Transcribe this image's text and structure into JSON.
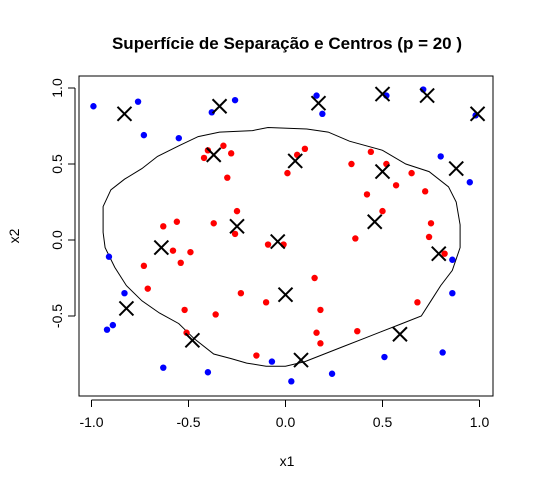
{
  "chart_data": {
    "type": "scatter",
    "title": "Superfície de Separação e Centros (p = 20 )",
    "xlabel": "x1",
    "ylabel": "x2",
    "xlim": [
      -1.0,
      1.0
    ],
    "ylim": [
      -0.95,
      1.0
    ],
    "x_ticks": [
      -1.0,
      -0.5,
      0.0,
      0.5,
      1.0
    ],
    "x_tick_labels": [
      "-1.0",
      "-0.5",
      "0.0",
      "0.5",
      "1.0"
    ],
    "y_ticks": [
      -0.5,
      0.0,
      0.5,
      1.0
    ],
    "y_tick_labels": [
      "-0.5",
      "0.0",
      "0.5",
      "1.0"
    ],
    "grid": false,
    "legend": "none",
    "colors": {
      "class_red": "#ff0000",
      "class_blue": "#0000ff",
      "centers": "#000000",
      "boundary": "#000000"
    },
    "series": [
      {
        "marker": "filled-circle",
        "color": "#ff0000",
        "points": [
          [
            -0.42,
            0.54
          ],
          [
            -0.32,
            0.62
          ],
          [
            -0.28,
            0.57
          ],
          [
            -0.3,
            0.41
          ],
          [
            -0.4,
            0.59
          ],
          [
            -0.37,
            0.11
          ],
          [
            -0.25,
            0.19
          ],
          [
            -0.26,
            0.04
          ],
          [
            -0.56,
            0.12
          ],
          [
            -0.63,
            0.09
          ],
          [
            -0.58,
            -0.07
          ],
          [
            -0.54,
            -0.15
          ],
          [
            -0.49,
            -0.08
          ],
          [
            -0.73,
            -0.17
          ],
          [
            -0.71,
            -0.32
          ],
          [
            -0.52,
            -0.46
          ],
          [
            -0.51,
            -0.61
          ],
          [
            -0.36,
            -0.49
          ],
          [
            -0.23,
            -0.35
          ],
          [
            -0.1,
            -0.41
          ],
          [
            -0.15,
            -0.76
          ],
          [
            -0.09,
            -0.03
          ],
          [
            -0.01,
            -0.03
          ],
          [
            0.06,
            0.56
          ],
          [
            0.1,
            0.6
          ],
          [
            0.01,
            0.44
          ],
          [
            0.15,
            -0.25
          ],
          [
            0.18,
            -0.46
          ],
          [
            0.16,
            -0.61
          ],
          [
            0.18,
            -0.68
          ],
          [
            0.37,
            -0.6
          ],
          [
            0.36,
            0.01
          ],
          [
            0.34,
            0.5
          ],
          [
            0.44,
            0.58
          ],
          [
            0.42,
            0.3
          ],
          [
            0.5,
            0.19
          ],
          [
            0.52,
            0.5
          ],
          [
            0.57,
            0.36
          ],
          [
            0.65,
            0.44
          ],
          [
            0.72,
            0.32
          ],
          [
            0.74,
            0.02
          ],
          [
            0.75,
            0.11
          ],
          [
            0.68,
            -0.41
          ],
          [
            0.82,
            -0.09
          ]
        ]
      },
      {
        "marker": "filled-circle",
        "color": "#0000ff",
        "points": [
          [
            -0.99,
            0.88
          ],
          [
            -0.91,
            -0.11
          ],
          [
            -0.92,
            -0.59
          ],
          [
            -0.89,
            -0.56
          ],
          [
            -0.83,
            -0.35
          ],
          [
            -0.73,
            0.69
          ],
          [
            -0.76,
            0.91
          ],
          [
            -0.55,
            0.67
          ],
          [
            -0.63,
            -0.84
          ],
          [
            -0.4,
            -0.87
          ],
          [
            -0.38,
            0.84
          ],
          [
            -0.26,
            0.92
          ],
          [
            -0.07,
            -0.8
          ],
          [
            0.03,
            -0.93
          ],
          [
            0.16,
            0.95
          ],
          [
            0.19,
            0.83
          ],
          [
            0.24,
            -0.88
          ],
          [
            0.51,
            -0.77
          ],
          [
            0.52,
            0.95
          ],
          [
            0.71,
            0.99
          ],
          [
            0.8,
            0.55
          ],
          [
            0.81,
            -0.74
          ],
          [
            0.86,
            -0.35
          ],
          [
            0.86,
            -0.13
          ],
          [
            0.95,
            0.38
          ],
          [
            0.98,
            0.82
          ]
        ]
      },
      {
        "marker": "x",
        "color": "#000000",
        "points": [
          [
            -0.83,
            0.83
          ],
          [
            -0.34,
            0.88
          ],
          [
            -0.37,
            0.56
          ],
          [
            -0.25,
            0.09
          ],
          [
            -0.64,
            -0.05
          ],
          [
            -0.82,
            -0.45
          ],
          [
            -0.48,
            -0.66
          ],
          [
            -0.04,
            -0.01
          ],
          [
            0.0,
            -0.36
          ],
          [
            0.08,
            -0.79
          ],
          [
            0.05,
            0.52
          ],
          [
            0.17,
            0.9
          ],
          [
            0.5,
            0.96
          ],
          [
            0.73,
            0.95
          ],
          [
            0.99,
            0.83
          ],
          [
            0.5,
            0.45
          ],
          [
            0.46,
            0.12
          ],
          [
            0.88,
            0.47
          ],
          [
            0.79,
            -0.09
          ],
          [
            0.59,
            -0.62
          ]
        ]
      }
    ],
    "boundary": [
      [
        -0.34,
        0.71
      ],
      [
        -0.17,
        0.72
      ],
      [
        -0.09,
        0.74
      ],
      [
        0.11,
        0.73
      ],
      [
        0.22,
        0.71
      ],
      [
        0.33,
        0.65
      ],
      [
        0.5,
        0.59
      ],
      [
        0.62,
        0.5
      ],
      [
        0.74,
        0.45
      ],
      [
        0.84,
        0.35
      ],
      [
        0.88,
        0.25
      ],
      [
        0.9,
        0.1
      ],
      [
        0.9,
        -0.05
      ],
      [
        0.86,
        -0.2
      ],
      [
        0.8,
        -0.3
      ],
      [
        0.75,
        -0.4
      ],
      [
        0.7,
        -0.5
      ],
      [
        0.6,
        -0.55
      ],
      [
        0.5,
        -0.6
      ],
      [
        0.4,
        -0.65
      ],
      [
        0.3,
        -0.7
      ],
      [
        0.2,
        -0.75
      ],
      [
        0.1,
        -0.8
      ],
      [
        0.0,
        -0.83
      ],
      [
        -0.1,
        -0.83
      ],
      [
        -0.2,
        -0.81
      ],
      [
        -0.28,
        -0.78
      ],
      [
        -0.37,
        -0.75
      ],
      [
        -0.47,
        -0.65
      ],
      [
        -0.55,
        -0.55
      ],
      [
        -0.65,
        -0.48
      ],
      [
        -0.74,
        -0.4
      ],
      [
        -0.82,
        -0.3
      ],
      [
        -0.88,
        -0.18
      ],
      [
        -0.93,
        -0.05
      ],
      [
        -0.94,
        0.05
      ],
      [
        -0.94,
        0.22
      ],
      [
        -0.9,
        0.33
      ],
      [
        -0.83,
        0.4
      ],
      [
        -0.74,
        0.47
      ],
      [
        -0.66,
        0.55
      ],
      [
        -0.55,
        0.62
      ],
      [
        -0.45,
        0.68
      ],
      [
        -0.34,
        0.71
      ]
    ]
  }
}
